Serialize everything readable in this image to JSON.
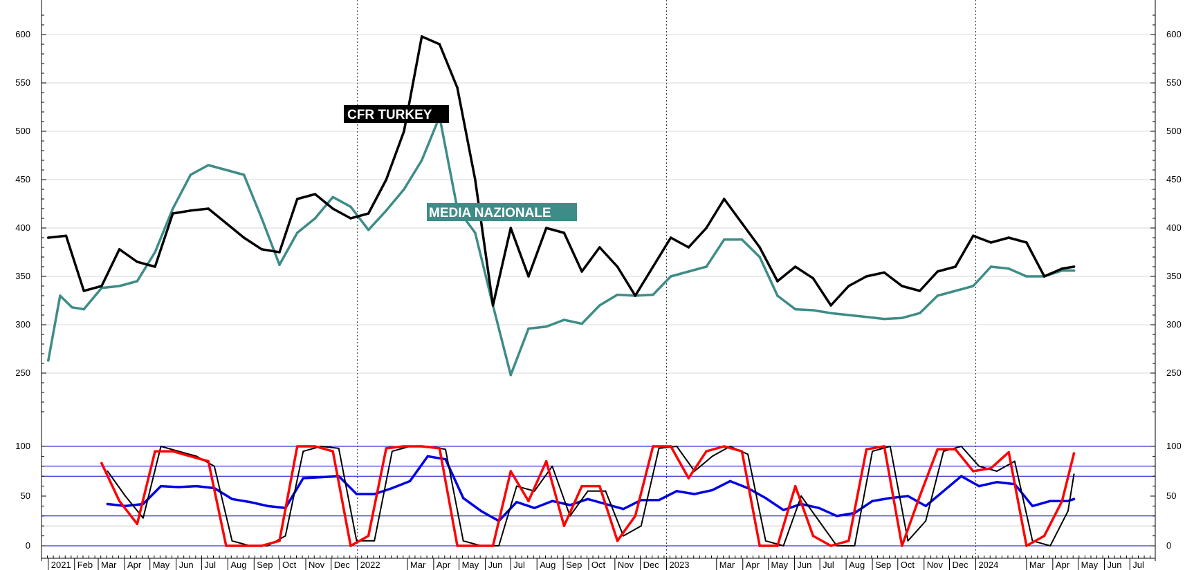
{
  "chart_data": [
    {
      "type": "line",
      "title": "",
      "xlabel": "",
      "ylabel": "",
      "ylim": [
        200,
        630
      ],
      "yticks": [
        250,
        300,
        350,
        400,
        450,
        500,
        550,
        600
      ],
      "grid": "horizontal gridlines at each tick; dotted vertical separators at year boundaries",
      "series": [
        {
          "name": "CFR TURKEY",
          "color": "#000000",
          "x": [
            "2021-01-01",
            "2021-01-22",
            "2021-02-12",
            "2021-03-05",
            "2021-03-26",
            "2021-04-16",
            "2021-05-07",
            "2021-05-28",
            "2021-06-18",
            "2021-07-09",
            "2021-07-30",
            "2021-08-20",
            "2021-09-10",
            "2021-10-01",
            "2021-10-22",
            "2021-11-12",
            "2021-12-03",
            "2021-12-24",
            "2022-01-14",
            "2022-02-04",
            "2022-02-25",
            "2022-03-18",
            "2022-04-08",
            "2022-04-29",
            "2022-05-20",
            "2022-06-10",
            "2022-07-01",
            "2022-07-22",
            "2022-08-12",
            "2022-09-02",
            "2022-09-23",
            "2022-10-14",
            "2022-11-04",
            "2022-11-25",
            "2022-12-16",
            "2023-01-06",
            "2023-01-27",
            "2023-02-17",
            "2023-03-10",
            "2023-03-31",
            "2023-04-21",
            "2023-05-12",
            "2023-06-02",
            "2023-06-23",
            "2023-07-14",
            "2023-08-04",
            "2023-08-25",
            "2023-09-15",
            "2023-10-06",
            "2023-10-27",
            "2023-11-17",
            "2023-12-08",
            "2023-12-29",
            "2024-01-19",
            "2024-02-09",
            "2024-03-01",
            "2024-03-22",
            "2024-04-12",
            "2024-04-26"
          ],
          "values": [
            390,
            392,
            335,
            340,
            378,
            365,
            360,
            415,
            418,
            420,
            405,
            390,
            378,
            375,
            430,
            435,
            420,
            410,
            415,
            450,
            500,
            598,
            590,
            545,
            450,
            320,
            400,
            350,
            400,
            395,
            355,
            380,
            360,
            330,
            360,
            390,
            380,
            400,
            430,
            405,
            380,
            345,
            360,
            348,
            320,
            340,
            350,
            354,
            340,
            335,
            355,
            360,
            392,
            385,
            390,
            385,
            350,
            358,
            360
          ]
        },
        {
          "name": "MEDIA NAZIONALE",
          "color": "#3d8c87",
          "x": [
            "2021-01-01",
            "2021-01-15",
            "2021-01-29",
            "2021-02-12",
            "2021-03-05",
            "2021-03-26",
            "2021-04-16",
            "2021-05-07",
            "2021-05-28",
            "2021-06-18",
            "2021-07-09",
            "2021-07-30",
            "2021-08-20",
            "2021-09-10",
            "2021-10-01",
            "2021-10-22",
            "2021-11-12",
            "2021-12-03",
            "2021-12-24",
            "2022-01-14",
            "2022-02-04",
            "2022-02-25",
            "2022-03-18",
            "2022-04-08",
            "2022-04-29",
            "2022-05-20",
            "2022-06-10",
            "2022-07-01",
            "2022-07-22",
            "2022-08-12",
            "2022-09-02",
            "2022-09-23",
            "2022-10-14",
            "2022-11-04",
            "2022-11-25",
            "2022-12-16",
            "2023-01-06",
            "2023-01-27",
            "2023-02-17",
            "2023-03-10",
            "2023-03-31",
            "2023-04-21",
            "2023-05-12",
            "2023-06-02",
            "2023-06-23",
            "2023-07-14",
            "2023-08-04",
            "2023-08-25",
            "2023-09-15",
            "2023-10-06",
            "2023-10-27",
            "2023-11-17",
            "2023-12-08",
            "2023-12-29",
            "2024-01-19",
            "2024-02-09",
            "2024-03-01",
            "2024-03-22",
            "2024-04-12",
            "2024-04-26"
          ],
          "values": [
            263,
            330,
            318,
            316,
            338,
            340,
            345,
            375,
            420,
            455,
            465,
            460,
            455,
            410,
            362,
            395,
            410,
            432,
            422,
            398,
            418,
            440,
            470,
            515,
            420,
            395,
            320,
            248,
            296,
            298,
            305,
            301,
            320,
            331,
            330,
            331,
            350,
            355,
            360,
            388,
            388,
            370,
            330,
            316,
            315,
            312,
            310,
            308,
            306,
            307,
            312,
            330,
            335,
            340,
            360,
            358,
            350,
            350,
            356,
            356
          ]
        }
      ],
      "annotations": [
        "CFR TURKEY",
        "MEDIA NAZIONALE"
      ]
    },
    {
      "type": "line",
      "title": "",
      "xlabel": "",
      "ylabel": "",
      "ylim": [
        0,
        100
      ],
      "yticks": [
        0,
        50,
        100
      ],
      "reference_lines": [
        100,
        80,
        70,
        30,
        20,
        0
      ],
      "series": [
        {
          "name": "",
          "color": "#ff0000",
          "x": [
            "2021-03-05",
            "2021-03-26",
            "2021-04-16",
            "2021-05-07",
            "2021-05-28",
            "2021-06-18",
            "2021-07-09",
            "2021-07-30",
            "2021-08-20",
            "2021-09-10",
            "2021-10-01",
            "2021-10-22",
            "2021-11-12",
            "2021-12-03",
            "2021-12-24",
            "2022-01-14",
            "2022-02-04",
            "2022-02-25",
            "2022-03-18",
            "2022-04-08",
            "2022-04-29",
            "2022-05-20",
            "2022-06-10",
            "2022-07-01",
            "2022-07-22",
            "2022-08-12",
            "2022-09-02",
            "2022-09-23",
            "2022-10-14",
            "2022-11-04",
            "2022-11-25",
            "2022-12-16",
            "2023-01-06",
            "2023-01-27",
            "2023-02-17",
            "2023-03-10",
            "2023-03-31",
            "2023-04-21",
            "2023-05-12",
            "2023-06-02",
            "2023-06-23",
            "2023-07-14",
            "2023-08-04",
            "2023-08-25",
            "2023-09-15",
            "2023-10-06",
            "2023-10-27",
            "2023-11-17",
            "2023-12-08",
            "2023-12-29",
            "2024-01-19",
            "2024-02-09",
            "2024-03-01",
            "2024-03-22",
            "2024-04-12",
            "2024-04-26"
          ],
          "values": [
            83,
            45,
            22,
            95,
            95,
            90,
            85,
            0,
            0,
            0,
            5,
            100,
            100,
            95,
            0,
            10,
            98,
            100,
            100,
            98,
            0,
            0,
            0,
            75,
            45,
            85,
            20,
            60,
            60,
            5,
            30,
            100,
            100,
            68,
            95,
            100,
            95,
            0,
            0,
            60,
            10,
            0,
            5,
            97,
            100,
            0,
            50,
            97,
            97,
            75,
            78,
            94,
            0,
            10,
            45,
            93
          ]
        },
        {
          "name": "",
          "color": "#000000",
          "x": [
            "2021-03-12",
            "2021-04-02",
            "2021-04-23",
            "2021-05-14",
            "2021-06-04",
            "2021-06-25",
            "2021-07-16",
            "2021-08-06",
            "2021-08-27",
            "2021-09-17",
            "2021-10-08",
            "2021-10-29",
            "2021-11-19",
            "2021-12-10",
            "2021-12-31",
            "2022-01-21",
            "2022-02-11",
            "2022-03-04",
            "2022-03-25",
            "2022-04-15",
            "2022-05-06",
            "2022-05-27",
            "2022-06-17",
            "2022-07-08",
            "2022-07-29",
            "2022-08-19",
            "2022-09-09",
            "2022-09-30",
            "2022-10-21",
            "2022-11-11",
            "2022-12-02",
            "2022-12-23",
            "2023-01-13",
            "2023-02-03",
            "2023-02-24",
            "2023-03-17",
            "2023-04-07",
            "2023-04-28",
            "2023-05-19",
            "2023-06-09",
            "2023-06-30",
            "2023-07-21",
            "2023-08-11",
            "2023-09-01",
            "2023-09-22",
            "2023-10-13",
            "2023-11-03",
            "2023-11-24",
            "2023-12-15",
            "2024-01-05",
            "2024-01-26",
            "2024-02-16",
            "2024-03-08",
            "2024-03-29",
            "2024-04-19",
            "2024-04-26"
          ],
          "values": [
            75,
            50,
            28,
            100,
            95,
            90,
            80,
            5,
            0,
            0,
            10,
            95,
            100,
            98,
            5,
            5,
            95,
            100,
            100,
            97,
            5,
            0,
            0,
            60,
            55,
            80,
            30,
            55,
            55,
            10,
            20,
            98,
            100,
            75,
            90,
            100,
            92,
            5,
            0,
            50,
            25,
            0,
            0,
            95,
            100,
            5,
            25,
            95,
            100,
            80,
            75,
            85,
            5,
            0,
            35,
            72
          ]
        },
        {
          "name": "",
          "color": "#0000e6",
          "x": [
            "2021-03-12",
            "2021-04-02",
            "2021-04-23",
            "2021-05-14",
            "2021-06-04",
            "2021-06-25",
            "2021-07-16",
            "2021-08-06",
            "2021-08-27",
            "2021-09-17",
            "2021-10-08",
            "2021-10-29",
            "2021-11-19",
            "2021-12-10",
            "2021-12-31",
            "2022-01-21",
            "2022-02-11",
            "2022-03-04",
            "2022-03-25",
            "2022-04-15",
            "2022-05-06",
            "2022-05-27",
            "2022-06-17",
            "2022-07-08",
            "2022-07-29",
            "2022-08-19",
            "2022-09-09",
            "2022-09-30",
            "2022-10-21",
            "2022-11-11",
            "2022-12-02",
            "2022-12-23",
            "2023-01-13",
            "2023-02-03",
            "2023-02-24",
            "2023-03-17",
            "2023-04-07",
            "2023-04-28",
            "2023-05-19",
            "2023-06-09",
            "2023-06-30",
            "2023-07-21",
            "2023-08-11",
            "2023-09-01",
            "2023-09-22",
            "2023-10-13",
            "2023-11-03",
            "2023-11-24",
            "2023-12-15",
            "2024-01-05",
            "2024-01-26",
            "2024-02-16",
            "2024-03-08",
            "2024-03-29",
            "2024-04-19",
            "2024-04-26"
          ],
          "values": [
            42,
            40,
            42,
            60,
            59,
            60,
            58,
            47,
            44,
            40,
            38,
            68,
            69,
            70,
            52,
            52,
            58,
            65,
            90,
            87,
            48,
            35,
            25,
            44,
            38,
            45,
            41,
            47,
            42,
            37,
            46,
            46,
            55,
            52,
            56,
            65,
            58,
            48,
            36,
            42,
            38,
            30,
            33,
            45,
            48,
            50,
            40,
            55,
            70,
            60,
            64,
            62,
            40,
            45,
            45,
            47
          ]
        }
      ]
    }
  ],
  "axes": {
    "left_ticks_main": [
      "250",
      "300",
      "350",
      "400",
      "450",
      "500",
      "550",
      "600"
    ],
    "right_ticks_main": [
      "250",
      "300",
      "350",
      "400",
      "450",
      "500",
      "550",
      "600"
    ],
    "left_ticks_osc": [
      "0",
      "50",
      "100"
    ],
    "right_ticks_osc": [
      "0",
      "50",
      "100"
    ],
    "month_labels": [
      {
        "label": "2021",
        "date": "2021-01-01"
      },
      {
        "label": "Feb",
        "date": "2021-02-01"
      },
      {
        "label": "Mar",
        "date": "2021-03-01"
      },
      {
        "label": "Apr",
        "date": "2021-04-01"
      },
      {
        "label": "May",
        "date": "2021-05-01"
      },
      {
        "label": "Jun",
        "date": "2021-06-01"
      },
      {
        "label": "Jul",
        "date": "2021-07-01"
      },
      {
        "label": "Aug",
        "date": "2021-08-01"
      },
      {
        "label": "Sep",
        "date": "2021-09-01"
      },
      {
        "label": "Oct",
        "date": "2021-10-01"
      },
      {
        "label": "Nov",
        "date": "2021-11-01"
      },
      {
        "label": "Dec",
        "date": "2021-12-01"
      },
      {
        "label": "2022",
        "date": "2022-01-01"
      },
      {
        "label": "Mar",
        "date": "2022-03-01"
      },
      {
        "label": "Apr",
        "date": "2022-04-01"
      },
      {
        "label": "May",
        "date": "2022-05-01"
      },
      {
        "label": "Jun",
        "date": "2022-06-01"
      },
      {
        "label": "Jul",
        "date": "2022-07-01"
      },
      {
        "label": "Aug",
        "date": "2022-08-01"
      },
      {
        "label": "Sep",
        "date": "2022-09-01"
      },
      {
        "label": "Oct",
        "date": "2022-10-01"
      },
      {
        "label": "Nov",
        "date": "2022-11-01"
      },
      {
        "label": "Dec",
        "date": "2022-12-01"
      },
      {
        "label": "2023",
        "date": "2023-01-01"
      },
      {
        "label": "Mar",
        "date": "2023-03-01"
      },
      {
        "label": "Apr",
        "date": "2023-04-01"
      },
      {
        "label": "May",
        "date": "2023-05-01"
      },
      {
        "label": "Jun",
        "date": "2023-06-01"
      },
      {
        "label": "Jul",
        "date": "2023-07-01"
      },
      {
        "label": "Aug",
        "date": "2023-08-01"
      },
      {
        "label": "Sep",
        "date": "2023-09-01"
      },
      {
        "label": "Oct",
        "date": "2023-10-01"
      },
      {
        "label": "Nov",
        "date": "2023-11-01"
      },
      {
        "label": "Dec",
        "date": "2023-12-01"
      },
      {
        "label": "2024",
        "date": "2024-01-01"
      },
      {
        "label": "Mar",
        "date": "2024-03-01"
      },
      {
        "label": "Apr",
        "date": "2024-04-01"
      },
      {
        "label": "May",
        "date": "2024-05-01"
      },
      {
        "label": "Jun",
        "date": "2024-06-01"
      },
      {
        "label": "Jul",
        "date": "2024-07-01"
      }
    ],
    "x_start": "2020-12-24",
    "x_end": "2024-07-31",
    "year_separators": [
      "2022-01-01",
      "2023-01-01",
      "2024-01-01"
    ]
  },
  "colors": {
    "background": "#ffffff",
    "grid": "#d9d9d9",
    "reference_line": "#0000cc",
    "reference_line_light": "#c8c8c8",
    "axis": "#000000",
    "label_black_bg": "#000000",
    "label_teal_bg": "#3d8c87"
  }
}
